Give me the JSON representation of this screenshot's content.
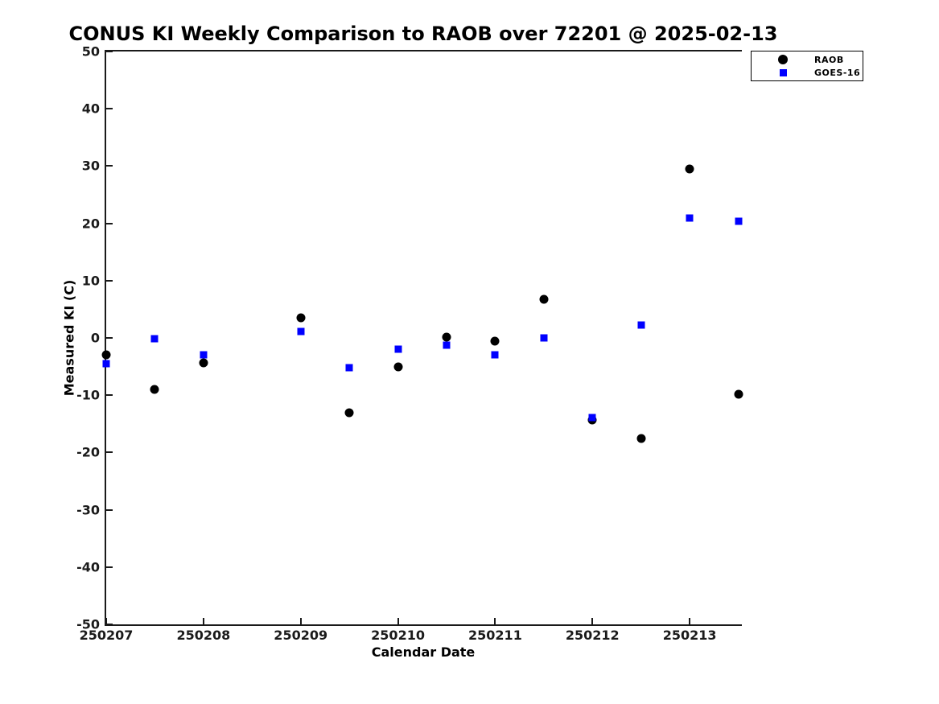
{
  "chart_data": {
    "type": "scatter",
    "title": "CONUS KI Weekly Comparison to RAOB over 72201 @ 2025-02-13",
    "xlabel": "Calendar Date",
    "ylabel": "Measured KI (C)",
    "xlim": [
      250207,
      250213.52
    ],
    "ylim": [
      -50,
      50
    ],
    "yticks": [
      50,
      40,
      30,
      20,
      10,
      0,
      -10,
      -20,
      -30,
      -40,
      -50
    ],
    "xticks": [
      "250207",
      "250208",
      "250209",
      "250210",
      "250211",
      "250212",
      "250213"
    ],
    "grid": false,
    "legend_position": "top-right-outside",
    "series": [
      {
        "name": "RAOB",
        "marker": "circle",
        "color": "#000000",
        "marker_size": 11,
        "points": [
          [
            250207.0,
            -3.0
          ],
          [
            250207.5,
            -9.0
          ],
          [
            250208.0,
            -4.4
          ],
          [
            250209.0,
            3.5
          ],
          [
            250209.5,
            -13.1
          ],
          [
            250210.0,
            -5.0
          ],
          [
            250210.5,
            0.1
          ],
          [
            250211.0,
            -0.6
          ],
          [
            250211.5,
            6.8
          ],
          [
            250212.0,
            -14.3
          ],
          [
            250212.5,
            -17.5
          ],
          [
            250213.0,
            29.5
          ],
          [
            250213.5,
            -9.9
          ]
        ]
      },
      {
        "name": "GOES-16",
        "marker": "square",
        "color": "#0000ff",
        "marker_size": 9,
        "points": [
          [
            250207.0,
            -4.5
          ],
          [
            250207.5,
            -0.2
          ],
          [
            250208.0,
            -3.0
          ],
          [
            250209.0,
            1.1
          ],
          [
            250209.5,
            -5.2
          ],
          [
            250210.0,
            -1.9
          ],
          [
            250210.5,
            -1.2
          ],
          [
            250211.0,
            -3.0
          ],
          [
            250211.5,
            0.0
          ],
          [
            250212.0,
            -13.9
          ],
          [
            250212.5,
            2.2
          ],
          [
            250213.0,
            20.9
          ],
          [
            250213.5,
            20.3
          ]
        ]
      }
    ]
  }
}
